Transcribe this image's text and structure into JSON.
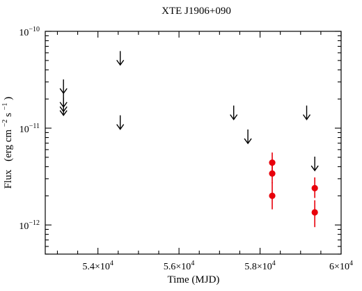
{
  "chart_data": {
    "type": "scatter",
    "title": "XTE J1906+090",
    "xlabel": "Time (MJD)",
    "ylabel_main": "Flux",
    "ylabel_units": "(erg cm",
    "ylabel_units_exp": "−2",
    "ylabel_units_tail": " s",
    "ylabel_units_exp2": "−1",
    "ylabel_units_close": ")",
    "x_scale": "linear",
    "y_scale": "log",
    "xlim": [
      52700,
      60000
    ],
    "ylim": [
      5e-13,
      1e-10
    ],
    "x_ticks": [
      {
        "value": 54000,
        "mantissa": "5.4×10",
        "exp": "4"
      },
      {
        "value": 56000,
        "mantissa": "5.6×10",
        "exp": "4"
      },
      {
        "value": 58000,
        "mantissa": "5.8×10",
        "exp": "4"
      },
      {
        "value": 60000,
        "mantissa": "6×10",
        "exp": "4"
      }
    ],
    "y_ticks": [
      {
        "value": 1e-12,
        "mantissa": "10",
        "exp": "−12"
      },
      {
        "value": 1e-11,
        "mantissa": "10",
        "exp": "−11"
      },
      {
        "value": 1e-10,
        "mantissa": "10",
        "exp": "−10"
      }
    ],
    "grid": false,
    "legend": "none",
    "colors": {
      "upper_limits": "#000000",
      "detections": "#e8000b"
    },
    "series": [
      {
        "marker": "down-arrow",
        "points": [
          {
            "x": 53150,
            "y": 2.7e-11
          },
          {
            "x": 53150,
            "y": 1.95e-11
          },
          {
            "x": 53150,
            "y": 1.75e-11
          },
          {
            "x": 53150,
            "y": 1.6e-11
          },
          {
            "x": 54550,
            "y": 5.3e-11
          },
          {
            "x": 54550,
            "y": 1.15e-11
          },
          {
            "x": 57350,
            "y": 1.45e-11
          },
          {
            "x": 57700,
            "y": 8.2e-12
          },
          {
            "x": 59150,
            "y": 1.45e-11
          },
          {
            "x": 59350,
            "y": 4.3e-12
          }
        ]
      },
      {
        "marker": "circle",
        "points": [
          {
            "x": 58300,
            "y": 4.4e-12,
            "ylo": 3.4e-12,
            "yhi": 5.6e-12
          },
          {
            "x": 58300,
            "y": 3.4e-12,
            "ylo": 2.7e-12,
            "yhi": 4.3e-12
          },
          {
            "x": 58300,
            "y": 2e-12,
            "ylo": 1.45e-12,
            "yhi": 2.75e-12
          },
          {
            "x": 59350,
            "y": 2.4e-12,
            "ylo": 1.9e-12,
            "yhi": 3.1e-12
          },
          {
            "x": 59350,
            "y": 1.35e-12,
            "ylo": 9.5e-13,
            "yhi": 1.8e-12
          }
        ]
      }
    ]
  }
}
